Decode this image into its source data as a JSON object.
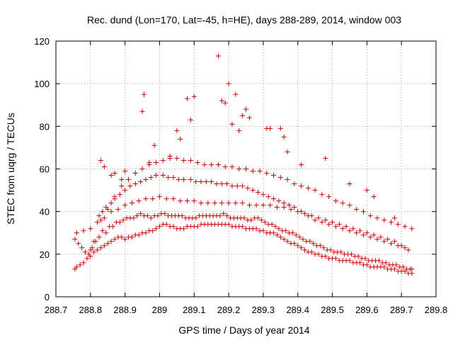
{
  "chart_data": {
    "type": "scatter",
    "title": "Rec. dund (Lon=170, Lat=-45, h=HE), days 288-289, 2014, window 003",
    "xlabel": "GPS time / Days of year 2014",
    "ylabel": "STEC from uqrg / TECUs",
    "xlim": [
      288.7,
      289.8
    ],
    "ylim": [
      0,
      120
    ],
    "xticks": [
      288.7,
      288.8,
      288.9,
      289,
      289.1,
      289.2,
      289.3,
      289.4,
      289.5,
      289.6,
      289.7,
      289.8
    ],
    "xtick_labels": [
      "288.7",
      "288.8",
      "288.9",
      "289",
      "289.1",
      "289.2",
      "289.3",
      "289.4",
      "289.5",
      "289.6",
      "289.7",
      "289.8"
    ],
    "yticks": [
      0,
      20,
      40,
      60,
      80,
      100,
      120
    ],
    "ytick_labels": [
      "0",
      "20",
      "40",
      "60",
      "80",
      "100",
      "120"
    ],
    "grid": true,
    "marker": "plus",
    "color": "#cc0000",
    "series": [
      {
        "x": [
          288.755,
          288.76,
          288.77,
          288.78,
          288.79,
          288.8,
          288.81,
          288.82,
          288.83,
          288.84,
          288.85,
          288.86,
          288.87,
          288.88,
          288.89,
          288.9,
          288.91,
          288.92,
          288.93,
          288.94,
          288.95,
          288.96,
          288.97,
          288.98,
          288.99,
          289.0,
          289.01,
          289.02,
          289.03,
          289.04,
          289.05,
          289.06,
          289.07,
          289.08,
          289.09,
          289.1,
          289.11,
          289.12,
          289.13,
          289.14,
          289.15,
          289.16,
          289.17,
          289.18,
          289.19,
          289.2,
          289.21,
          289.22,
          289.23,
          289.24,
          289.25,
          289.26,
          289.27,
          289.28,
          289.29,
          289.3,
          289.31,
          289.32,
          289.33,
          289.34,
          289.35,
          289.36,
          289.37,
          289.38,
          289.39,
          289.4,
          289.41,
          289.42,
          289.43,
          289.44,
          289.45,
          289.46,
          289.47,
          289.48,
          289.49,
          289.5,
          289.51,
          289.52,
          289.53,
          289.54,
          289.55,
          289.56,
          289.57,
          289.58,
          289.59,
          289.6,
          289.61,
          289.62,
          289.63,
          289.64,
          289.65,
          289.66,
          289.67,
          289.68,
          289.69,
          289.7,
          289.71,
          289.72,
          289.73,
          288.755,
          288.765,
          288.775,
          288.785,
          288.795,
          288.805,
          288.815,
          288.825,
          288.835,
          288.845,
          288.855,
          288.865,
          288.875,
          288.885,
          288.895,
          288.905,
          288.915,
          288.925,
          288.935,
          288.945,
          288.955,
          288.965,
          288.975,
          288.985,
          288.995,
          289.005,
          289.015,
          289.025,
          289.035,
          289.045,
          289.055,
          289.065,
          289.075,
          289.085,
          289.095,
          289.105,
          289.115,
          289.125,
          289.135,
          289.145,
          289.155,
          289.165,
          289.175,
          289.185,
          289.195,
          289.205,
          289.215,
          289.225,
          289.235,
          289.245,
          289.255,
          289.265,
          289.275,
          289.285,
          289.295,
          289.305,
          289.315,
          289.325,
          289.335,
          289.345,
          289.355,
          289.365,
          289.375,
          289.385,
          289.395,
          289.405,
          289.415,
          289.425,
          289.435,
          289.445,
          289.455,
          289.465,
          289.475,
          289.485,
          289.495,
          289.505,
          289.515,
          289.525,
          289.535,
          289.545,
          289.555,
          289.565,
          289.575,
          289.585,
          289.595,
          289.605,
          289.615,
          289.625,
          289.635,
          289.645,
          289.655,
          289.665,
          289.675,
          289.685,
          289.695,
          289.705,
          289.715,
          289.725,
          289.73,
          288.76,
          288.78,
          288.8,
          288.82,
          288.84,
          288.86,
          288.88,
          288.9,
          288.92,
          288.94,
          288.96,
          288.98,
          289.0,
          289.02,
          289.04,
          289.06,
          289.08,
          289.1,
          289.12,
          289.14,
          289.16,
          289.18,
          289.2,
          289.22,
          289.24,
          289.26,
          289.28,
          289.3,
          289.32,
          289.34,
          289.36,
          289.38,
          289.4,
          289.42,
          289.44,
          289.46,
          289.48,
          289.5,
          289.52,
          289.54,
          289.56,
          289.58,
          289.6,
          289.62,
          289.64,
          289.66,
          289.68,
          289.7,
          289.72,
          288.825,
          288.835,
          288.845,
          288.86,
          288.87,
          288.885,
          288.9,
          288.915,
          288.93,
          288.945,
          288.96,
          288.975,
          288.99,
          289.01,
          289.025,
          289.04,
          289.055,
          289.07,
          289.09,
          289.105,
          289.12,
          289.135,
          289.15,
          289.165,
          289.18,
          289.195,
          289.21,
          289.225,
          289.24,
          289.255,
          289.27,
          289.285,
          289.3,
          289.315,
          289.33,
          289.345,
          289.36,
          289.375,
          289.39,
          289.41,
          289.43,
          289.45,
          289.47,
          289.49,
          289.51,
          289.53,
          289.55,
          289.57,
          289.59,
          289.61,
          289.63,
          289.65,
          289.67,
          289.69,
          289.71,
          288.83,
          288.84,
          288.86,
          288.87,
          288.89,
          288.9,
          288.95,
          288.955,
          288.97,
          288.985,
          289.03,
          289.05,
          289.06,
          289.08,
          289.09,
          289.1,
          289.17,
          289.18,
          289.19,
          289.2,
          289.21,
          289.22,
          289.23,
          289.24,
          289.25,
          289.26,
          289.31,
          289.32,
          289.35,
          289.36,
          289.37,
          289.41,
          289.48,
          289.55,
          289.6,
          289.62,
          289.68,
          288.8,
          288.81,
          288.83,
          288.85,
          288.87,
          288.89,
          288.91,
          288.93,
          288.95,
          288.97,
          288.99,
          289.01,
          289.03,
          289.05,
          289.07,
          289.09,
          289.11,
          289.13,
          289.15,
          289.17,
          289.19,
          289.21,
          289.23,
          289.25,
          289.27,
          289.29,
          289.31,
          289.33,
          289.35,
          289.37,
          289.39,
          289.41,
          289.43,
          289.45,
          289.47,
          289.49,
          289.51,
          289.53,
          289.55,
          289.57,
          289.59,
          289.61,
          289.63,
          289.65,
          289.67,
          289.69,
          289.71,
          289.73
        ],
        "y": [
          13,
          14,
          15,
          16,
          18,
          19,
          21,
          22,
          23,
          24,
          25,
          26,
          27,
          28,
          28,
          27,
          28,
          28,
          29,
          29,
          30,
          30,
          31,
          31,
          32,
          33,
          34,
          34,
          33,
          33,
          32,
          32,
          32,
          33,
          33,
          33,
          33,
          34,
          34,
          34,
          34,
          34,
          34,
          34,
          34,
          34,
          33,
          33,
          33,
          33,
          32,
          32,
          32,
          32,
          31,
          31,
          30,
          30,
          30,
          29,
          28,
          27,
          26,
          25,
          25,
          24,
          23,
          22,
          21,
          21,
          20,
          20,
          19,
          19,
          18,
          18,
          18,
          17,
          17,
          17,
          17,
          16,
          16,
          16,
          15,
          15,
          14,
          14,
          14,
          14,
          14,
          13,
          13,
          13,
          12,
          12,
          12,
          11,
          11,
          27,
          25,
          23,
          21,
          20,
          23,
          26,
          28,
          31,
          30,
          33,
          33,
          35,
          35,
          36,
          37,
          37,
          37,
          38,
          39,
          38,
          38,
          37,
          38,
          38,
          39,
          39,
          38,
          38,
          38,
          38,
          38,
          37,
          37,
          37,
          37,
          38,
          38,
          38,
          38,
          38,
          38,
          38,
          39,
          38,
          37,
          37,
          37,
          37,
          37,
          36,
          36,
          37,
          37,
          36,
          35,
          34,
          34,
          33,
          32,
          31,
          31,
          30,
          30,
          29,
          28,
          27,
          26,
          26,
          25,
          24,
          24,
          23,
          22,
          22,
          21,
          21,
          21,
          20,
          20,
          20,
          19,
          19,
          18,
          18,
          17,
          17,
          17,
          17,
          16,
          16,
          15,
          15,
          15,
          14,
          14,
          13,
          13,
          13,
          30,
          31,
          32,
          35,
          37,
          40,
          41,
          43,
          44,
          45,
          46,
          46,
          47,
          46,
          46,
          45,
          45,
          45,
          44,
          44,
          44,
          44,
          44,
          44,
          44,
          43,
          43,
          43,
          43,
          42,
          42,
          41,
          40,
          39,
          38,
          37,
          36,
          35,
          34,
          33,
          32,
          31,
          30,
          29,
          28,
          27,
          26,
          24,
          22,
          38,
          40,
          42,
          44,
          46,
          48,
          50,
          52,
          53,
          54,
          55,
          56,
          57,
          57,
          56,
          56,
          55,
          55,
          55,
          54,
          54,
          54,
          54,
          53,
          53,
          53,
          52,
          52,
          52,
          51,
          50,
          49,
          48,
          47,
          46,
          45,
          44,
          43,
          42,
          40,
          38,
          36,
          35,
          34,
          33,
          32,
          31,
          30,
          29,
          28,
          27,
          26,
          25,
          24,
          23,
          64,
          61,
          57,
          58,
          55,
          59,
          87,
          95,
          63,
          71,
          66,
          78,
          74,
          93,
          83,
          94,
          113,
          92,
          91,
          100,
          81,
          95,
          78,
          85,
          88,
          84,
          79,
          79,
          79,
          75,
          68,
          62,
          65,
          53,
          50,
          47,
          37,
          22,
          26,
          36,
          41,
          47,
          52,
          55,
          58,
          60,
          62,
          63,
          64,
          65,
          65,
          64,
          64,
          63,
          62,
          62,
          62,
          61,
          61,
          60,
          60,
          59,
          59,
          58,
          57,
          56,
          55,
          53,
          52,
          51,
          50,
          48,
          47,
          45,
          44,
          43,
          41,
          40,
          38,
          37,
          36,
          35,
          34,
          33,
          32
        ]
      }
    ]
  }
}
